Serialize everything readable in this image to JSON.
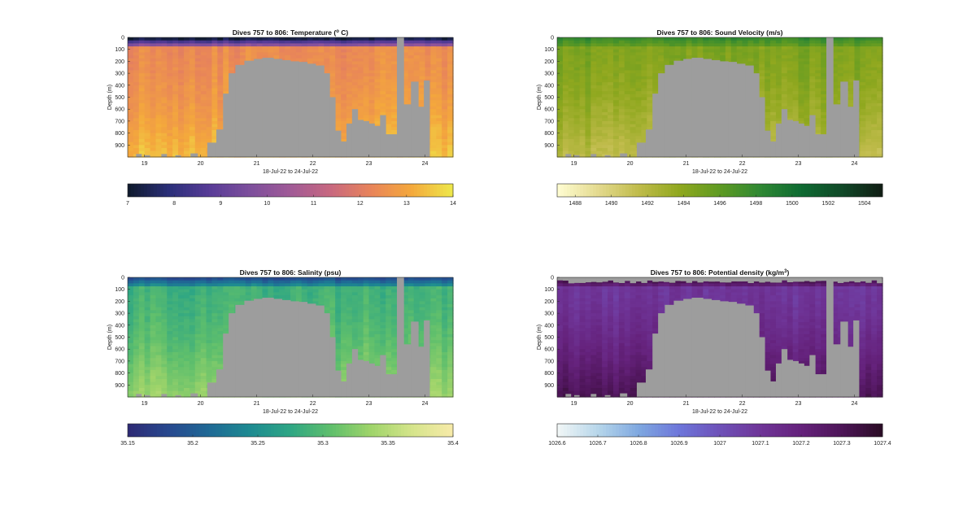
{
  "chart_data": [
    {
      "id": "temp",
      "type": "heatmap",
      "title": "Dives 757 to 806: Temperature (",
      "title_sup": "o",
      "title_suffix": " C)",
      "xlabel": "18-Jul-22 to 24-Jul-22",
      "ylabel": "Depth (m)",
      "x_ticks": [
        "19",
        "20",
        "21",
        "22",
        "23",
        "24"
      ],
      "y_ticks": [
        "0",
        "100",
        "200",
        "300",
        "400",
        "500",
        "600",
        "700",
        "800",
        "900"
      ],
      "colorbar_ticks": [
        "7",
        "8",
        "9",
        "10",
        "11",
        "12",
        "13",
        "14"
      ],
      "clim": [
        7,
        14
      ],
      "colormap": [
        "#0f1a2e",
        "#2b2f7a",
        "#583c97",
        "#7d4f9c",
        "#a05a97",
        "#c8687f",
        "#e8845a",
        "#f4a83c",
        "#eee64a"
      ],
      "ramp": [
        0.05,
        0.78,
        0.93
      ]
    },
    {
      "id": "sv",
      "type": "heatmap",
      "title": "Dives 757 to 806: Sound Velocity (m/s)",
      "xlabel": "18-Jul-22 to 24-Jul-22",
      "ylabel": "Depth (m)",
      "x_ticks": [
        "19",
        "20",
        "21",
        "22",
        "23",
        "24"
      ],
      "y_ticks": [
        "0",
        "100",
        "200",
        "300",
        "400",
        "500",
        "600",
        "700",
        "800",
        "900"
      ],
      "colorbar_ticks": [
        "1488",
        "1490",
        "1492",
        "1494",
        "1496",
        "1498",
        "1500",
        "1502",
        "1504"
      ],
      "clim": [
        1487,
        1505
      ],
      "colormap": [
        "#fefcd0",
        "#e3d98d",
        "#bfbb4a",
        "#90a81f",
        "#5e9a22",
        "#2f8833",
        "#0e6b32",
        "#104a28",
        "#101e14"
      ],
      "ramp": [
        0.6,
        0.42,
        0.25
      ]
    },
    {
      "id": "sal",
      "type": "heatmap",
      "title": "Dives 757 to 806: Salinity (psu)",
      "xlabel": "18-Jul-22 to 24-Jul-22",
      "ylabel": "Depth (m)",
      "x_ticks": [
        "19",
        "20",
        "21",
        "22",
        "23",
        "24"
      ],
      "y_ticks": [
        "0",
        "100",
        "200",
        "300",
        "400",
        "500",
        "600",
        "700",
        "800",
        "900"
      ],
      "colorbar_ticks": [
        "35.15",
        "35.2",
        "35.25",
        "35.3",
        "35.35",
        "35.4"
      ],
      "clim": [
        35.15,
        35.4
      ],
      "colormap": [
        "#2d2b75",
        "#27498f",
        "#1f6a95",
        "#1d8a91",
        "#2ea684",
        "#5fbf6c",
        "#9fd46a",
        "#d4e48a",
        "#f6eaa8"
      ],
      "ramp": [
        0.15,
        0.55,
        0.75
      ]
    },
    {
      "id": "dens",
      "type": "heatmap",
      "title": "Dives 757 to 806: Potential density (kg/m",
      "title_sup": "3",
      "title_suffix": ")",
      "xlabel": "18-Jul-22 to 24-Jul-22",
      "ylabel": "Depth (m)",
      "x_ticks": [
        "19",
        "20",
        "21",
        "22",
        "23",
        "24"
      ],
      "y_ticks": [
        "0",
        "100",
        "200",
        "300",
        "400",
        "500",
        "600",
        "700",
        "800",
        "900"
      ],
      "colorbar_ticks": [
        "1026.6",
        "1026.7",
        "1026.8",
        "1026.9",
        "1027",
        "1027.1",
        "1027.2",
        "1027.3",
        "1027.4"
      ],
      "clim": [
        1026.6,
        1027.4
      ],
      "colormap": [
        "#f0f6f6",
        "#b5d5ea",
        "#7ea7e0",
        "#6d76da",
        "#6e51b8",
        "#6f3598",
        "#65227c",
        "#4e1559",
        "#2b0c26"
      ],
      "ramp": [
        0.95,
        0.62,
        0.9
      ]
    }
  ],
  "colors": {
    "mask": "#9d9d9d",
    "background": "#ffffff"
  }
}
